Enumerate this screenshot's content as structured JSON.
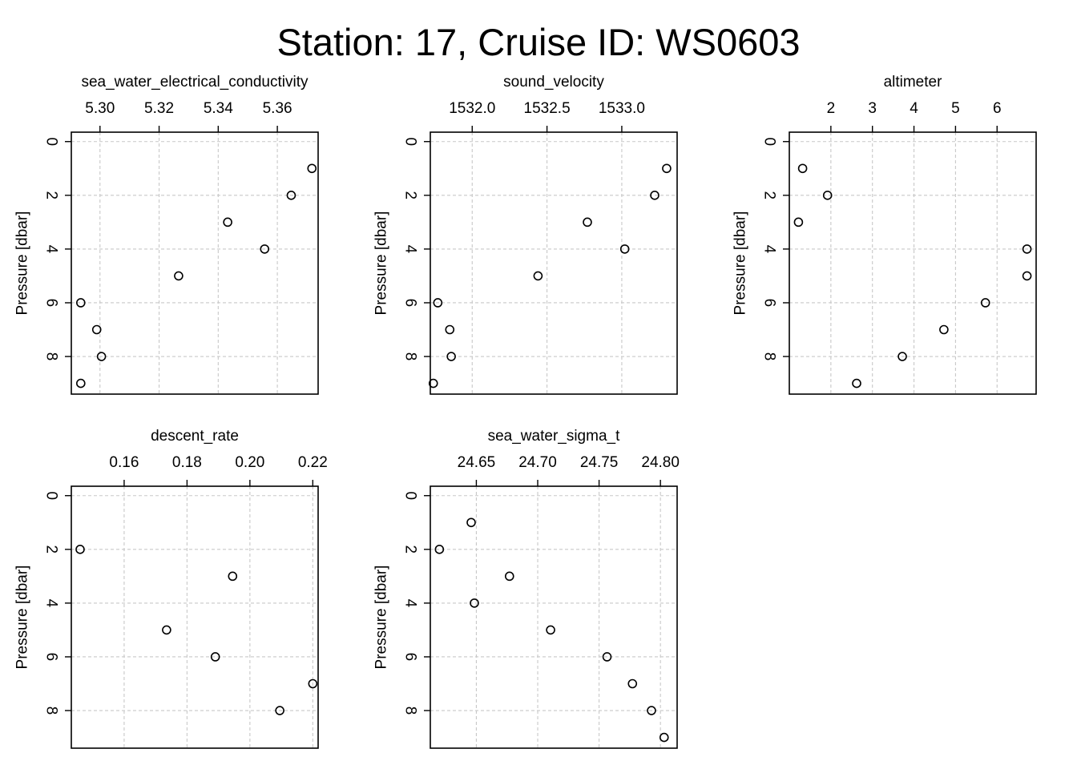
{
  "title": "Station: 17, Cruise ID: WS0603",
  "chart_data": [
    {
      "type": "scatter",
      "title": "sea_water_electrical_conductivity",
      "ylabel": "Pressure [dbar]",
      "xlim": [
        5.2903,
        5.3738
      ],
      "ylim": [
        9.4,
        -0.35
      ],
      "xticks": [
        5.3,
        5.32,
        5.34,
        5.36
      ],
      "xtick_labels": [
        "5.30",
        "5.32",
        "5.34",
        "5.36"
      ],
      "yticks": [
        0,
        2,
        4,
        6,
        8
      ],
      "ytick_labels": [
        "0",
        "2",
        "4",
        "6",
        "8"
      ],
      "grid": true,
      "y": [
        1,
        2,
        3,
        4,
        5,
        6,
        7,
        8,
        9
      ],
      "x": [
        5.3717,
        5.3647,
        5.3432,
        5.3557,
        5.3266,
        5.2935,
        5.2989,
        5.3005,
        5.2935
      ]
    },
    {
      "type": "scatter",
      "title": "sound_velocity",
      "ylabel": "Pressure [dbar]",
      "xlim": [
        1531.72,
        1533.37
      ],
      "ylim": [
        9.4,
        -0.35
      ],
      "xticks": [
        1532.0,
        1532.5,
        1533.0
      ],
      "xtick_labels": [
        "1532.0",
        "1532.5",
        "1533.0"
      ],
      "yticks": [
        0,
        2,
        4,
        6,
        8
      ],
      "ytick_labels": [
        "0",
        "2",
        "4",
        "6",
        "8"
      ],
      "grid": true,
      "y": [
        1,
        2,
        3,
        4,
        5,
        6,
        7,
        8,
        9
      ],
      "x": [
        1533.3,
        1533.22,
        1532.77,
        1533.02,
        1532.44,
        1531.77,
        1531.85,
        1531.86,
        1531.74
      ]
    },
    {
      "type": "scatter",
      "title": "altimeter",
      "ylabel": "Pressure [dbar]",
      "xlim": [
        1.0,
        6.94
      ],
      "ylim": [
        9.4,
        -0.35
      ],
      "xticks": [
        2,
        3,
        4,
        5,
        6
      ],
      "xtick_labels": [
        "2",
        "3",
        "4",
        "5",
        "6"
      ],
      "yticks": [
        0,
        2,
        4,
        6,
        8
      ],
      "ytick_labels": [
        "0",
        "2",
        "4",
        "6",
        "8"
      ],
      "grid": true,
      "y": [
        1,
        2,
        3,
        4,
        5,
        6,
        7,
        8,
        9
      ],
      "x": [
        1.32,
        1.92,
        1.22,
        6.72,
        6.72,
        5.72,
        4.72,
        3.72,
        2.62
      ]
    },
    {
      "type": "scatter",
      "title": "descent_rate",
      "ylabel": "Pressure [dbar]",
      "xlim": [
        0.1432,
        0.2217
      ],
      "ylim": [
        9.4,
        -0.35
      ],
      "xticks": [
        0.16,
        0.18,
        0.2,
        0.22
      ],
      "xtick_labels": [
        "0.16",
        "0.18",
        "0.20",
        "0.22"
      ],
      "yticks": [
        0,
        2,
        4,
        6,
        8
      ],
      "ytick_labels": [
        "0",
        "2",
        "4",
        "6",
        "8"
      ],
      "grid": true,
      "y": [
        2,
        3,
        5,
        6,
        7,
        8
      ],
      "x": [
        0.146,
        0.1945,
        0.1735,
        0.189,
        0.22,
        0.2095
      ]
    },
    {
      "type": "scatter",
      "title": "sea_water_sigma_t",
      "ylabel": "Pressure [dbar]",
      "xlim": [
        24.6125,
        24.8136
      ],
      "ylim": [
        9.4,
        -0.35
      ],
      "xticks": [
        24.65,
        24.7,
        24.75,
        24.8
      ],
      "xtick_labels": [
        "24.65",
        "24.70",
        "24.75",
        "24.80"
      ],
      "yticks": [
        0,
        2,
        4,
        6,
        8
      ],
      "ytick_labels": [
        "0",
        "2",
        "4",
        "6",
        "8"
      ],
      "grid": true,
      "y": [
        1,
        2,
        3,
        4,
        5,
        6,
        7,
        8,
        9
      ],
      "x": [
        24.6458,
        24.6199,
        24.677,
        24.6484,
        24.7105,
        24.7565,
        24.7772,
        24.7927,
        24.803
      ]
    }
  ]
}
